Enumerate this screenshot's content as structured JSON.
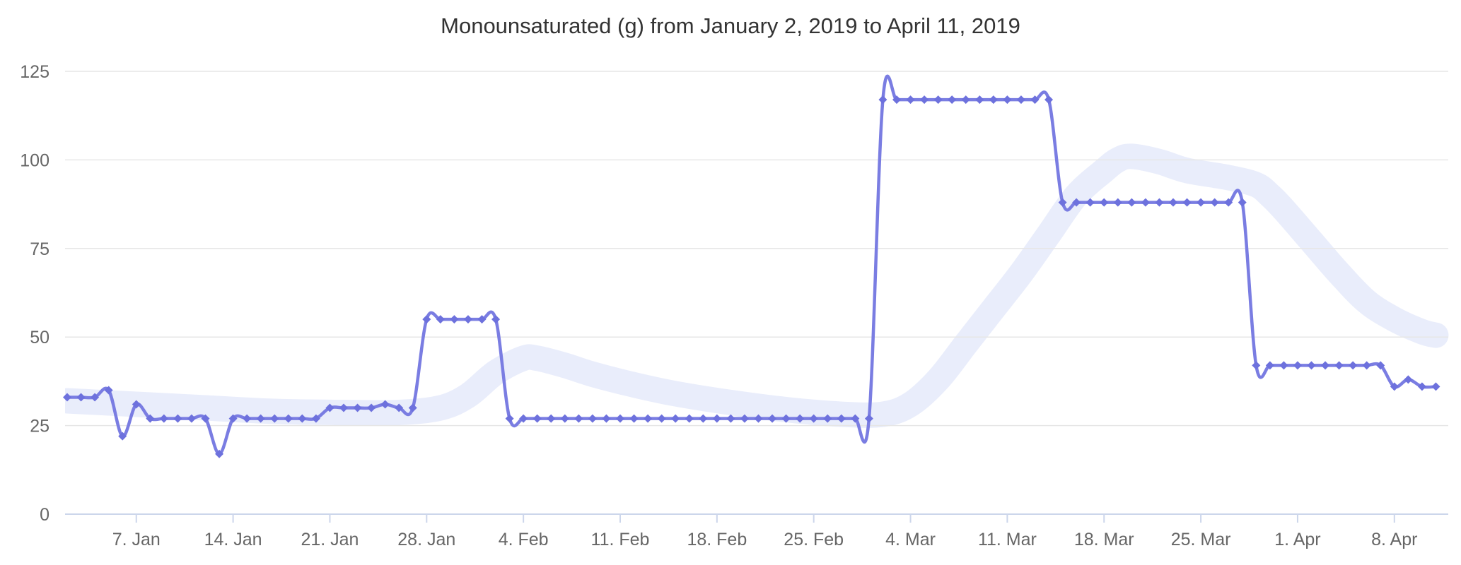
{
  "chart_data": {
    "type": "line",
    "title": "Monounsaturated (g) from January 2, 2019 to April 11, 2019",
    "start_date": "January 2, 2019",
    "end_date": "April 11, 2019",
    "x_unit": "day",
    "num_points": 100,
    "grid": true,
    "legend": "none",
    "ylim": [
      0,
      125
    ],
    "y_ticks": [
      0,
      25,
      50,
      75,
      100,
      125
    ],
    "x_ticks": [
      {
        "label": "7. Jan",
        "day": 5
      },
      {
        "label": "14. Jan",
        "day": 12
      },
      {
        "label": "21. Jan",
        "day": 19
      },
      {
        "label": "28. Jan",
        "day": 26
      },
      {
        "label": "4. Feb",
        "day": 33
      },
      {
        "label": "11. Feb",
        "day": 40
      },
      {
        "label": "18. Feb",
        "day": 47
      },
      {
        "label": "25. Feb",
        "day": 54
      },
      {
        "label": "4. Mar",
        "day": 61
      },
      {
        "label": "11. Mar",
        "day": 68
      },
      {
        "label": "18. Mar",
        "day": 75
      },
      {
        "label": "25. Mar",
        "day": 82
      },
      {
        "label": "1. Apr",
        "day": 89
      },
      {
        "label": "8. Apr",
        "day": 96
      }
    ],
    "series": [
      {
        "name": "Monounsaturated (g) daily",
        "type": "spline",
        "marker": "diamond",
        "values": [
          33,
          33,
          33,
          35,
          22,
          31,
          27,
          27,
          27,
          27,
          27,
          17,
          27,
          27,
          27,
          27,
          27,
          27,
          27,
          30,
          30,
          30,
          30,
          31,
          30,
          30,
          55,
          55,
          55,
          55,
          55,
          55,
          27,
          27,
          27,
          27,
          27,
          27,
          27,
          27,
          27,
          27,
          27,
          27,
          27,
          27,
          27,
          27,
          27,
          27,
          27,
          27,
          27,
          27,
          27,
          27,
          27,
          27,
          27,
          117,
          117,
          117,
          117,
          117,
          117,
          117,
          117,
          117,
          117,
          117,
          117,
          117,
          88,
          88,
          88,
          88,
          88,
          88,
          88,
          88,
          88,
          88,
          88,
          88,
          88,
          88,
          42,
          42,
          42,
          42,
          42,
          42,
          42,
          42,
          42,
          42,
          36,
          38,
          36,
          36
        ]
      },
      {
        "name": "smoothed trend band",
        "type": "band",
        "points": [
          [
            0,
            32
          ],
          [
            5,
            31
          ],
          [
            10,
            30
          ],
          [
            15,
            29
          ],
          [
            20,
            28.7
          ],
          [
            24,
            28.7
          ],
          [
            27,
            30
          ],
          [
            29,
            33.5
          ],
          [
            31,
            40
          ],
          [
            33,
            44
          ],
          [
            34,
            44
          ],
          [
            36,
            42
          ],
          [
            38,
            39.5
          ],
          [
            41,
            36.5
          ],
          [
            44,
            34
          ],
          [
            48,
            31.5
          ],
          [
            52,
            29.5
          ],
          [
            56,
            28.2
          ],
          [
            59,
            28.2
          ],
          [
            61,
            31
          ],
          [
            63,
            38
          ],
          [
            65,
            48
          ],
          [
            67,
            58
          ],
          [
            69,
            68
          ],
          [
            71,
            79
          ],
          [
            73,
            90
          ],
          [
            75,
            97
          ],
          [
            76,
            100
          ],
          [
            77,
            101
          ],
          [
            79,
            99.5
          ],
          [
            81,
            97
          ],
          [
            84,
            95
          ],
          [
            86,
            93
          ],
          [
            87,
            90
          ],
          [
            88,
            86
          ],
          [
            90,
            77
          ],
          [
            92,
            68
          ],
          [
            94,
            60
          ],
          [
            96,
            55
          ],
          [
            98,
            51.5
          ],
          [
            99,
            50.5
          ]
        ]
      }
    ]
  },
  "colors": {
    "line": "#7a7de2",
    "marker": "#6d71dd",
    "band": "#e9edfb",
    "grid": "#e6e6e6",
    "axis": "#ccd6eb",
    "tick": "#ccd6eb",
    "axis_label": "#666666",
    "title": "#333333",
    "background": "#ffffff"
  }
}
